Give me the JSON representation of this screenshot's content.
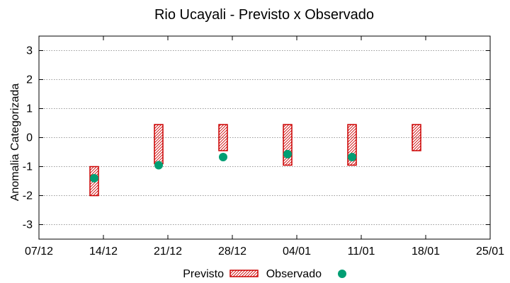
{
  "chart_data": {
    "type": "range_bar_with_points",
    "title": "Rio Ucayali - Previsto x Observado",
    "xlabel": "",
    "ylabel": "Anomalia Categorizada",
    "ylim": [
      -3.5,
      3.5
    ],
    "yticks": [
      3,
      2,
      1,
      0,
      -1,
      -2,
      -3
    ],
    "ytick_labels": [
      "3",
      "2",
      "1",
      "0",
      "-1",
      "-2",
      "-3"
    ],
    "xlim": [
      0,
      49
    ],
    "xticks": [
      0,
      7,
      14,
      21,
      28,
      35,
      42,
      49
    ],
    "xtick_labels": [
      "07/12",
      "14/12",
      "21/12",
      "28/12",
      "04/01",
      "11/01",
      "18/01",
      "25/01"
    ],
    "grid": "horizontal dashed at y ticks",
    "legend": "bottom-center",
    "series": [
      {
        "name": "Previsto",
        "style": "hatched-box",
        "color": "#cc0000",
        "items": [
          {
            "x": 6,
            "low": -2,
            "high": -1
          },
          {
            "x": 13,
            "low": -0.9,
            "high": 0.45
          },
          {
            "x": 20,
            "low": -0.45,
            "high": 0.45
          },
          {
            "x": 27,
            "low": -0.95,
            "high": 0.45
          },
          {
            "x": 34,
            "low": -0.95,
            "high": 0.45
          },
          {
            "x": 41,
            "low": -0.45,
            "high": 0.45
          }
        ]
      },
      {
        "name": "Observado",
        "style": "point",
        "color": "#009e73",
        "points": [
          {
            "x": 6,
            "y": -1.4
          },
          {
            "x": 13,
            "y": -0.95
          },
          {
            "x": 20,
            "y": -0.67
          },
          {
            "x": 27,
            "y": -0.57
          },
          {
            "x": 34,
            "y": -0.67
          }
        ]
      }
    ]
  }
}
